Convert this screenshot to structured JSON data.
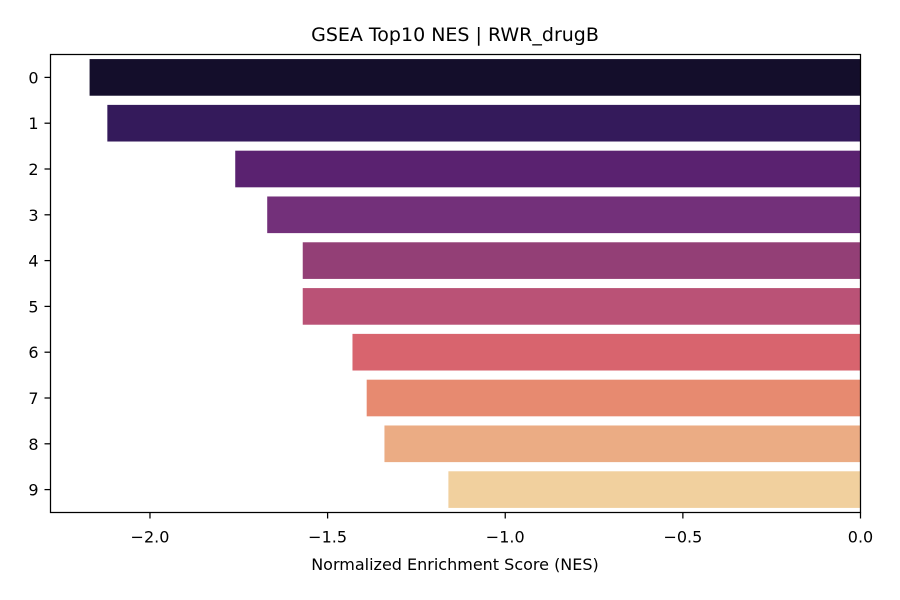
{
  "chart_data": {
    "type": "bar",
    "orientation": "horizontal",
    "title": "GSEA Top10 NES | RWR_drugB",
    "xlabel": "Normalized Enrichment Score (NES)",
    "ylabel": "",
    "categories": [
      "0",
      "1",
      "2",
      "3",
      "4",
      "5",
      "6",
      "7",
      "8",
      "9"
    ],
    "values": [
      -2.17,
      -2.12,
      -1.76,
      -1.67,
      -1.57,
      -1.57,
      -1.43,
      -1.39,
      -1.34,
      -1.16
    ],
    "xlim": [
      -2.28,
      0.0
    ],
    "xticks": [
      -2.0,
      -1.5,
      -1.0,
      -0.5,
      0.0
    ],
    "xtick_labels": [
      "−2.0",
      "−1.5",
      "−1.0",
      "−0.5",
      "0.0"
    ],
    "colors": [
      "#140e2b",
      "#341a5b",
      "#5a2270",
      "#73307a",
      "#933f76",
      "#ba5276",
      "#d8646e",
      "#e78a70",
      "#ebac84",
      "#f1d09e"
    ],
    "grid": false,
    "legend": "none"
  }
}
